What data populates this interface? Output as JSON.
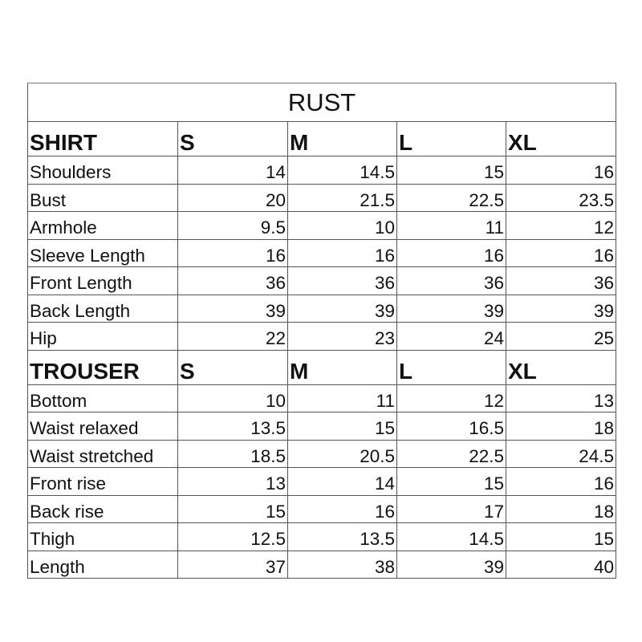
{
  "title": "RUST",
  "sizes": [
    "S",
    "M",
    "L",
    "XL"
  ],
  "shirt": {
    "label": "SHIRT",
    "rows": [
      {
        "name": "Shoulders",
        "values": [
          "14",
          "14.5",
          "15",
          "16"
        ]
      },
      {
        "name": "Bust",
        "values": [
          "20",
          "21.5",
          "22.5",
          "23.5"
        ]
      },
      {
        "name": "Armhole",
        "values": [
          "9.5",
          "10",
          "11",
          "12"
        ]
      },
      {
        "name": "Sleeve Length",
        "values": [
          "16",
          "16",
          "16",
          "16"
        ]
      },
      {
        "name": "Front Length",
        "values": [
          "36",
          "36",
          "36",
          "36"
        ]
      },
      {
        "name": "Back Length",
        "values": [
          "39",
          "39",
          "39",
          "39"
        ]
      },
      {
        "name": "Hip",
        "values": [
          "22",
          "23",
          "24",
          "25"
        ]
      }
    ]
  },
  "trouser": {
    "label": "TROUSER",
    "rows": [
      {
        "name": "Bottom",
        "values": [
          "10",
          "11",
          "12",
          "13"
        ]
      },
      {
        "name": "Waist relaxed",
        "values": [
          "13.5",
          "15",
          "16.5",
          "18"
        ]
      },
      {
        "name": "Waist stretched",
        "values": [
          "18.5",
          "20.5",
          "22.5",
          "24.5"
        ]
      },
      {
        "name": "Front rise",
        "values": [
          "13",
          "14",
          "15",
          "16"
        ]
      },
      {
        "name": "Back rise",
        "values": [
          "15",
          "16",
          "17",
          "18"
        ]
      },
      {
        "name": "Thigh",
        "values": [
          "12.5",
          "13.5",
          "14.5",
          "15"
        ]
      },
      {
        "name": "Length",
        "values": [
          "37",
          "38",
          "39",
          "40"
        ]
      }
    ]
  }
}
